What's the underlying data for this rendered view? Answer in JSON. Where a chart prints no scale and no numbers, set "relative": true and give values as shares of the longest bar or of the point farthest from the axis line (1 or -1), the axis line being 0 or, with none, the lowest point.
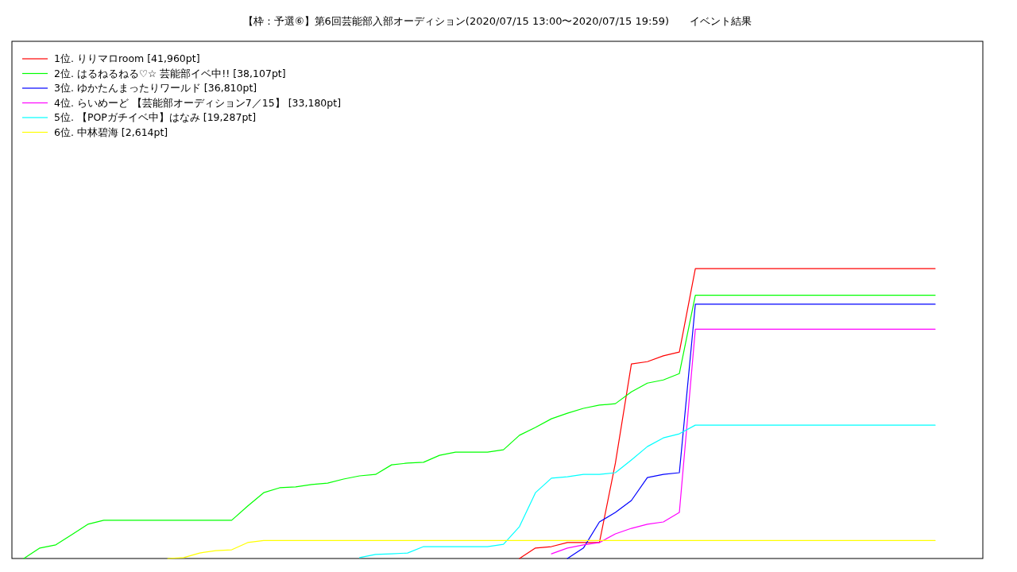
{
  "chart_data": {
    "type": "line",
    "title": "【枠：予選⑥】第6回芸能部入部オーディション(2020/07/15 13:00〜2020/07/15 19:59)　　イベント結果",
    "relative": true,
    "legend": "top left",
    "categories": [
      null,
      null,
      null,
      null,
      null,
      null,
      null,
      null,
      null,
      null,
      null,
      null,
      null,
      null,
      null,
      null,
      null,
      null,
      null,
      null,
      null,
      null,
      null,
      null,
      null,
      null,
      null,
      null,
      null,
      null,
      null,
      null,
      null,
      null,
      null,
      null,
      null,
      null,
      null,
      null,
      null,
      null,
      null,
      null,
      null,
      null,
      null,
      null,
      null,
      null,
      null,
      null,
      null,
      null,
      null,
      null,
      null,
      null
    ],
    "series": [
      {
        "name": "1位. りりマロroom [41,960pt]",
        "color": "#ff0000",
        "values": [
          null,
          null,
          null,
          null,
          null,
          null,
          null,
          null,
          null,
          null,
          null,
          null,
          null,
          null,
          null,
          null,
          null,
          null,
          null,
          null,
          null,
          null,
          null,
          null,
          null,
          null,
          null,
          null,
          null,
          null,
          null,
          0,
          0.036,
          0.041,
          0.055,
          0.055,
          0.055,
          0.329,
          0.671,
          0.679,
          0.699,
          0.712,
          1,
          1,
          1,
          1,
          1,
          1,
          1,
          1,
          1,
          1,
          1,
          1,
          1,
          1,
          1,
          1
        ]
      },
      {
        "name": "2位. はるねるねる♡☆  芸能部イベ中!! [38,107pt]",
        "color": "#00ff00",
        "values": [
          0,
          0.036,
          0.047,
          0.082,
          0.118,
          0.132,
          0.132,
          0.132,
          0.132,
          0.132,
          0.132,
          0.132,
          0.132,
          0.132,
          0.181,
          0.227,
          0.244,
          0.247,
          0.255,
          0.26,
          0.274,
          0.285,
          0.29,
          0.323,
          0.329,
          0.332,
          0.356,
          0.367,
          0.367,
          0.367,
          0.375,
          0.425,
          0.452,
          0.482,
          0.501,
          0.518,
          0.529,
          0.534,
          0.575,
          0.605,
          0.616,
          0.638,
          0.908,
          0.908,
          0.908,
          0.908,
          0.908,
          0.908,
          0.908,
          0.908,
          0.908,
          0.908,
          0.908,
          0.908,
          0.908,
          0.908,
          0.908,
          0.908
        ]
      },
      {
        "name": "3位. ゆかたんまったりワールド [36,810pt]",
        "color": "#0000ff",
        "values": [
          null,
          null,
          null,
          null,
          null,
          null,
          null,
          null,
          null,
          null,
          null,
          null,
          null,
          null,
          null,
          null,
          null,
          null,
          null,
          null,
          null,
          null,
          null,
          null,
          null,
          null,
          null,
          null,
          null,
          null,
          null,
          null,
          null,
          null,
          0,
          0.036,
          0.126,
          0.159,
          0.2,
          0.279,
          0.29,
          0.296,
          0.877,
          0.877,
          0.877,
          0.877,
          0.877,
          0.877,
          0.877,
          0.877,
          0.877,
          0.877,
          0.877,
          0.877,
          0.877,
          0.877,
          0.877,
          0.877
        ]
      },
      {
        "name": "4位. らいめーど 【芸能部オーディション7／15】 [33,180pt]",
        "color": "#ff00ff",
        "values": [
          null,
          null,
          null,
          null,
          null,
          null,
          null,
          null,
          null,
          null,
          null,
          null,
          null,
          null,
          null,
          null,
          null,
          null,
          null,
          null,
          null,
          null,
          null,
          null,
          null,
          null,
          null,
          null,
          null,
          null,
          null,
          null,
          null,
          0.016,
          0.036,
          0.047,
          0.055,
          0.085,
          0.104,
          0.118,
          0.126,
          0.159,
          0.791,
          0.791,
          0.791,
          0.791,
          0.791,
          0.791,
          0.791,
          0.791,
          0.791,
          0.791,
          0.791,
          0.791,
          0.791,
          0.791,
          0.791,
          0.791
        ]
      },
      {
        "name": "5位. 【POPガチイベ中】はなみ [19,287pt]",
        "color": "#00ffff",
        "values": [
          null,
          null,
          null,
          null,
          null,
          null,
          null,
          null,
          null,
          null,
          null,
          null,
          null,
          null,
          null,
          null,
          null,
          null,
          null,
          null,
          null,
          0.003,
          0.014,
          0.016,
          0.019,
          0.041,
          0.041,
          0.041,
          0.041,
          0.041,
          0.049,
          0.11,
          0.227,
          0.277,
          0.282,
          0.29,
          0.29,
          0.296,
          0.34,
          0.386,
          0.416,
          0.43,
          0.46,
          0.46,
          0.46,
          0.46,
          0.46,
          0.46,
          0.46,
          0.46,
          0.46,
          0.46,
          0.46,
          0.46,
          0.46,
          0.46,
          0.46,
          0.46
        ]
      },
      {
        "name": "6位. 中林碧海 [2,614pt]",
        "color": "#ffff00",
        "values": [
          null,
          null,
          null,
          null,
          null,
          null,
          null,
          null,
          null,
          0,
          0.003,
          0.019,
          0.027,
          0.03,
          0.055,
          0.062,
          0.062,
          0.062,
          0.062,
          0.062,
          0.062,
          0.062,
          0.062,
          0.062,
          0.062,
          0.062,
          0.062,
          0.062,
          0.062,
          0.062,
          0.062,
          0.062,
          0.062,
          0.062,
          0.062,
          0.062,
          0.062,
          0.062,
          0.062,
          0.062,
          0.062,
          0.062,
          0.062,
          0.062,
          0.062,
          0.062,
          0.062,
          0.062,
          0.062,
          0.062,
          0.062,
          0.062,
          0.062,
          0.062,
          0.062,
          0.062,
          0.062,
          0.062
        ]
      }
    ]
  }
}
